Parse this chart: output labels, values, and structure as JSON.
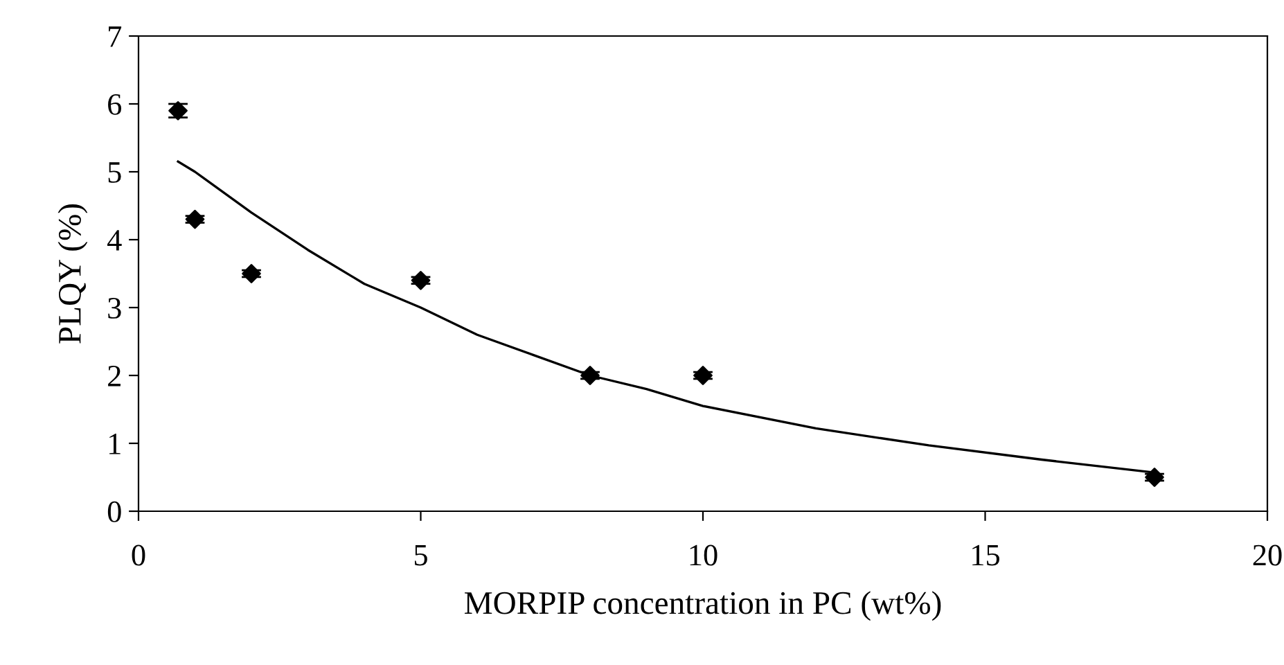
{
  "chart_data": {
    "type": "scatter",
    "xlabel": "MORPIP concentration in PC (wt%)",
    "ylabel": "PLQY (%)",
    "xlim": [
      0,
      20
    ],
    "xticks": [
      0,
      5,
      10,
      15,
      20
    ],
    "ylim": [
      0,
      7
    ],
    "yticks": [
      0,
      1,
      2,
      3,
      4,
      5,
      6,
      7
    ],
    "grid": false,
    "series": [
      {
        "color": "#000000",
        "marker": "diamond",
        "x": [
          0.7,
          1,
          2,
          5,
          8,
          10,
          18
        ],
        "values": [
          5.9,
          4.3,
          3.5,
          3.4,
          2.0,
          2.0,
          0.5
        ],
        "errors": [
          0.1,
          0.05,
          0.05,
          0.05,
          0.05,
          0.05,
          0.05
        ]
      },
      {
        "type": "line",
        "color": "#000000",
        "marker": "none",
        "line_style": "solid",
        "x": [
          0.7,
          1,
          2,
          3,
          4,
          5,
          6,
          7,
          8,
          9,
          10,
          12,
          14,
          16,
          18
        ],
        "values": [
          5.15,
          5.0,
          4.4,
          3.85,
          3.35,
          3.0,
          2.6,
          2.3,
          2.0,
          1.8,
          1.55,
          1.22,
          0.97,
          0.76,
          0.57
        ]
      }
    ]
  }
}
